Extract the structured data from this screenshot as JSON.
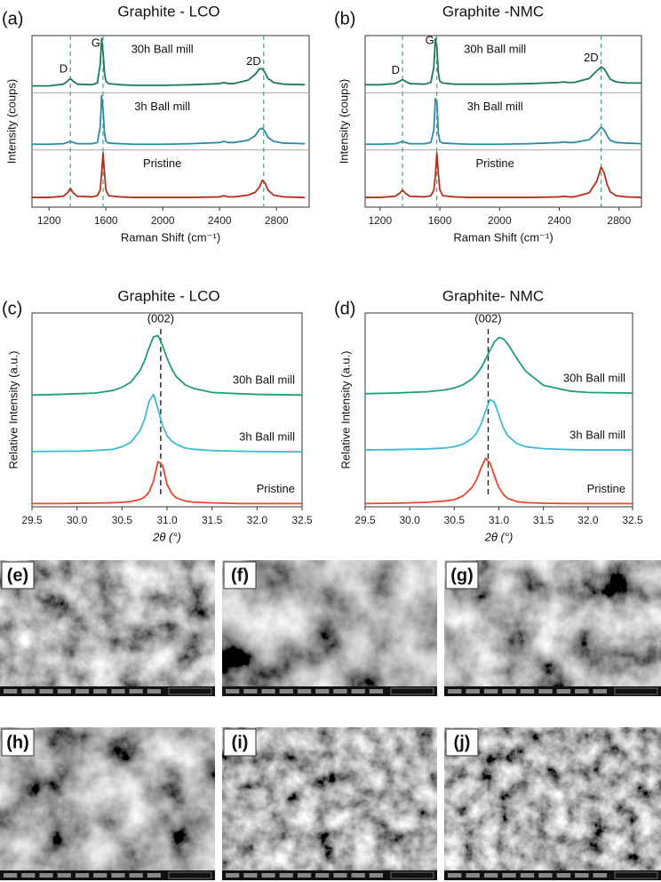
{
  "chart_data": [
    {
      "type": "line",
      "panel_label": "(a)",
      "title": "Graphite - LCO",
      "xlabel": "Raman Shift (cm⁻¹)",
      "ylabel": "Intensity (coups)",
      "x": [
        1080,
        1100,
        1200,
        1300,
        1330,
        1350,
        1370,
        1400,
        1500,
        1540,
        1560,
        1570,
        1580,
        1590,
        1600,
        1620,
        1700,
        1800,
        2000,
        2200,
        2400,
        2430,
        2460,
        2500,
        2600,
        2650,
        2680,
        2700,
        2720,
        2740,
        2780,
        2850,
        3000
      ],
      "xlim": [
        1080,
        3030
      ],
      "ylim": [
        0,
        3
      ],
      "xticks": [
        1200,
        1600,
        2000,
        2400,
        2800
      ],
      "series": [
        {
          "name": "Pristine",
          "color": "#b5301c",
          "values": [
            0.17,
            0.17,
            0.17,
            0.19,
            0.25,
            0.33,
            0.25,
            0.19,
            0.18,
            0.2,
            0.3,
            0.6,
            0.95,
            0.6,
            0.3,
            0.2,
            0.18,
            0.17,
            0.17,
            0.17,
            0.18,
            0.2,
            0.18,
            0.18,
            0.21,
            0.26,
            0.35,
            0.47,
            0.42,
            0.3,
            0.21,
            0.18,
            0.17
          ]
        },
        {
          "name": "3h Ball mill",
          "color": "#2a8aa8",
          "values": [
            1.1,
            1.1,
            1.1,
            1.11,
            1.13,
            1.15,
            1.13,
            1.11,
            1.11,
            1.13,
            1.4,
            1.95,
            1.7,
            1.3,
            1.15,
            1.12,
            1.11,
            1.1,
            1.1,
            1.11,
            1.13,
            1.15,
            1.13,
            1.13,
            1.17,
            1.25,
            1.36,
            1.38,
            1.32,
            1.22,
            1.15,
            1.12,
            1.11
          ]
        },
        {
          "name": "30h Ball mill",
          "color": "#1a7a5a",
          "values": [
            2.12,
            2.12,
            2.12,
            2.15,
            2.2,
            2.25,
            2.2,
            2.15,
            2.14,
            2.17,
            2.5,
            2.95,
            2.7,
            2.35,
            2.2,
            2.16,
            2.14,
            2.13,
            2.13,
            2.14,
            2.16,
            2.18,
            2.16,
            2.16,
            2.22,
            2.32,
            2.42,
            2.42,
            2.35,
            2.25,
            2.18,
            2.15,
            2.14
          ]
        }
      ],
      "reference_lines": [
        {
          "label": "D",
          "x": 1350
        },
        {
          "label": "G",
          "x": 1580
        },
        {
          "label": "2D",
          "x": 2710
        }
      ],
      "reference_color": "#3a9a7a"
    },
    {
      "type": "line",
      "panel_label": "(b)",
      "title": "Graphite -NMC",
      "xlabel": "Raman Shift (cm⁻¹)",
      "ylabel": "Intensity (coups)",
      "x": [
        1100,
        1150,
        1200,
        1300,
        1330,
        1350,
        1370,
        1400,
        1500,
        1540,
        1560,
        1570,
        1580,
        1590,
        1600,
        1620,
        1700,
        1800,
        2000,
        2200,
        2400,
        2430,
        2460,
        2500,
        2600,
        2650,
        2680,
        2700,
        2720,
        2740,
        2780,
        2850,
        2950
      ],
      "xlim": [
        1100,
        2950
      ],
      "ylim": [
        0,
        3
      ],
      "xticks": [
        1200,
        1600,
        2000,
        2400,
        2800
      ],
      "series": [
        {
          "name": "Pristine",
          "color": "#b5301c",
          "values": [
            0.17,
            0.17,
            0.17,
            0.19,
            0.24,
            0.3,
            0.24,
            0.19,
            0.18,
            0.2,
            0.3,
            0.55,
            0.95,
            0.6,
            0.3,
            0.2,
            0.18,
            0.17,
            0.17,
            0.17,
            0.18,
            0.19,
            0.18,
            0.18,
            0.25,
            0.45,
            0.7,
            0.6,
            0.4,
            0.27,
            0.2,
            0.18,
            0.17
          ]
        },
        {
          "name": "3h Ball mill",
          "color": "#2a8aa8",
          "values": [
            1.1,
            1.1,
            1.1,
            1.11,
            1.13,
            1.15,
            1.13,
            1.11,
            1.11,
            1.13,
            1.35,
            1.9,
            1.85,
            1.3,
            1.15,
            1.12,
            1.11,
            1.1,
            1.1,
            1.11,
            1.13,
            1.14,
            1.13,
            1.13,
            1.18,
            1.3,
            1.4,
            1.35,
            1.25,
            1.17,
            1.13,
            1.12,
            1.11
          ]
        },
        {
          "name": "30h Ball mill",
          "color": "#1a7a5a",
          "values": [
            2.14,
            2.14,
            2.14,
            2.16,
            2.2,
            2.23,
            2.2,
            2.16,
            2.15,
            2.18,
            2.45,
            2.95,
            2.8,
            2.35,
            2.2,
            2.17,
            2.15,
            2.15,
            2.15,
            2.16,
            2.18,
            2.19,
            2.18,
            2.18,
            2.25,
            2.38,
            2.45,
            2.42,
            2.33,
            2.24,
            2.19,
            2.17,
            2.17
          ]
        }
      ],
      "reference_lines": [
        {
          "label": "D",
          "x": 1350
        },
        {
          "label": "G",
          "x": 1580
        },
        {
          "label": "2D",
          "x": 2680
        }
      ],
      "reference_color": "#3a9a7a"
    },
    {
      "type": "line",
      "panel_label": "(c)",
      "title": "Graphite - LCO",
      "xlabel": "2θ (°)",
      "ylabel": "Relative Intensity (a.u.)",
      "x": [
        29.5,
        29.8,
        30.0,
        30.2,
        30.4,
        30.5,
        30.6,
        30.7,
        30.75,
        30.8,
        30.85,
        30.9,
        30.95,
        31.0,
        31.05,
        31.1,
        31.2,
        31.3,
        31.5,
        31.8,
        32.0,
        32.5
      ],
      "xlim": [
        29.5,
        32.5
      ],
      "ylim": [
        0,
        3
      ],
      "xticks": [
        29.5,
        {
          "value": 30,
          "label": "30.0"
        },
        30.5,
        {
          "value": 31,
          "label": "31.0"
        },
        31.5,
        {
          "value": 32,
          "label": "32.0"
        },
        32.5
      ],
      "series": [
        {
          "name": "Pristine",
          "color": "#e8472a",
          "values": [
            0.05,
            0.05,
            0.054,
            0.057,
            0.063,
            0.069,
            0.082,
            0.114,
            0.15,
            0.23,
            0.4,
            0.7,
            0.64,
            0.35,
            0.21,
            0.14,
            0.09,
            0.07,
            0.06,
            0.05,
            0.05,
            0.05
          ]
        },
        {
          "name": "3h Ball mill",
          "color": "#3bbcd0",
          "values": [
            0.855,
            0.86,
            0.86,
            0.87,
            0.89,
            0.93,
            1.0,
            1.18,
            1.35,
            1.63,
            1.74,
            1.51,
            1.26,
            1.1,
            1.02,
            0.97,
            0.91,
            0.89,
            0.87,
            0.86,
            0.855,
            0.85
          ]
        },
        {
          "name": "30h Ball mill",
          "color": "#1e9e78",
          "values": [
            1.73,
            1.74,
            1.75,
            1.76,
            1.8,
            1.85,
            1.93,
            2.11,
            2.26,
            2.46,
            2.63,
            2.65,
            2.5,
            2.3,
            2.14,
            2.02,
            1.89,
            1.83,
            1.77,
            1.75,
            1.74,
            1.73
          ]
        }
      ],
      "reference_lines": [
        {
          "label": "(002)",
          "x": 30.93
        }
      ],
      "reference_color": "#222222"
    },
    {
      "type": "line",
      "panel_label": "(d)",
      "title": "Graphite- NMC",
      "xlabel": "2θ (°)",
      "ylabel": "Relative Intensity (a.u.)",
      "x": [
        29.5,
        29.8,
        30.0,
        30.2,
        30.4,
        30.5,
        30.6,
        30.7,
        30.75,
        30.8,
        30.85,
        30.9,
        30.95,
        31.0,
        31.05,
        31.1,
        31.2,
        31.3,
        31.5,
        31.8,
        32.0,
        32.5
      ],
      "xlim": [
        29.5,
        32.5
      ],
      "ylim": [
        0,
        3
      ],
      "xticks": [
        29.5,
        {
          "value": 30,
          "label": "30.0"
        },
        30.5,
        {
          "value": 31,
          "label": "31.0"
        },
        31.5,
        {
          "value": 32,
          "label": "32.0"
        },
        32.5
      ],
      "series": [
        {
          "name": "Pristine",
          "color": "#e8472a",
          "values": [
            0.05,
            0.055,
            0.06,
            0.07,
            0.09,
            0.11,
            0.17,
            0.3,
            0.42,
            0.6,
            0.75,
            0.68,
            0.48,
            0.3,
            0.19,
            0.13,
            0.08,
            0.065,
            0.055,
            0.05,
            0.05,
            0.05
          ]
        },
        {
          "name": "3h Ball mill",
          "color": "#3bbcd0",
          "values": [
            0.88,
            0.885,
            0.89,
            0.895,
            0.91,
            0.93,
            0.97,
            1.06,
            1.14,
            1.28,
            1.48,
            1.66,
            1.62,
            1.42,
            1.22,
            1.1,
            0.98,
            0.93,
            0.9,
            0.885,
            0.88,
            0.88
          ]
        },
        {
          "name": "30h Ball mill",
          "color": "#1e9e78",
          "values": [
            1.75,
            1.76,
            1.77,
            1.78,
            1.81,
            1.84,
            1.89,
            1.98,
            2.05,
            2.15,
            2.28,
            2.42,
            2.55,
            2.62,
            2.6,
            2.52,
            2.3,
            2.1,
            1.88,
            1.79,
            1.77,
            1.76
          ]
        }
      ],
      "reference_lines": [
        {
          "label": "(002)",
          "x": 30.88
        }
      ],
      "reference_color": "#222222"
    }
  ],
  "images": [
    {
      "label": "(e)"
    },
    {
      "label": "(f)"
    },
    {
      "label": "(g)"
    },
    {
      "label": "(h)"
    },
    {
      "label": "(i)"
    },
    {
      "label": "(j)"
    }
  ]
}
